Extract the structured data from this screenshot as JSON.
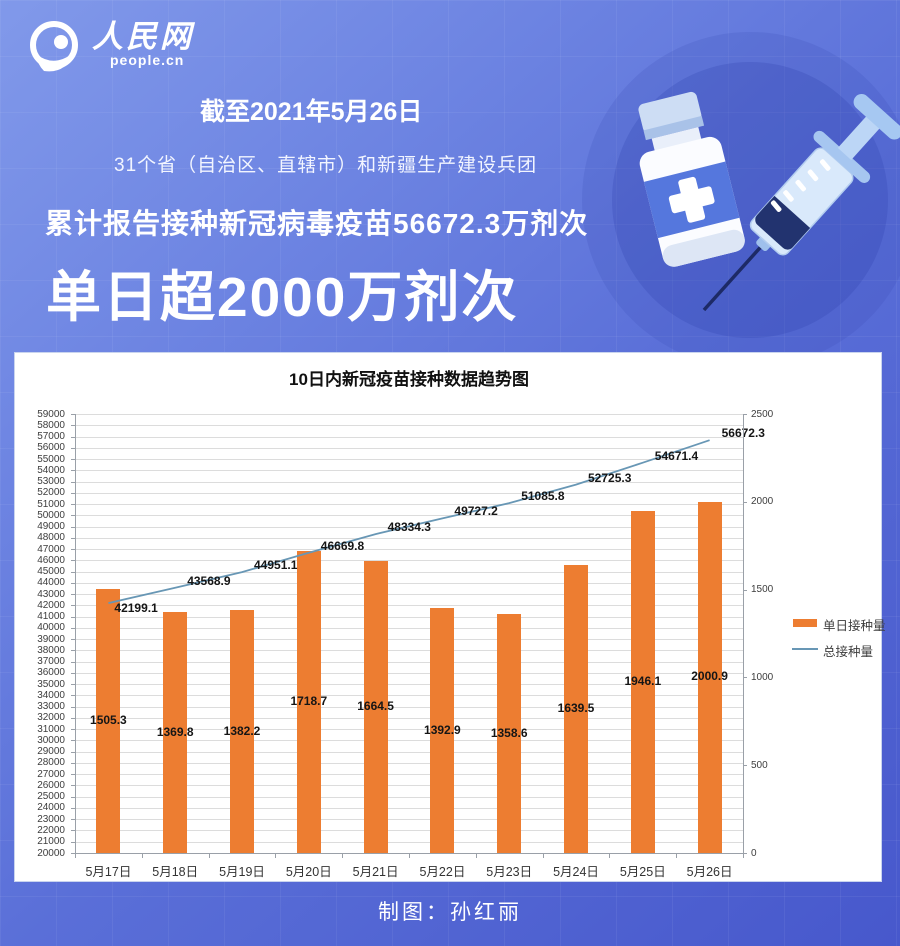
{
  "header": {
    "logo": {
      "cn": "人民网",
      "domain": "people.cn"
    },
    "date_line": "截至2021年5月26日",
    "scope_line": "31个省（自治区、直辖市）和新疆生产建设兵团",
    "cumulative_line": "累计报告接种新冠病毒疫苗56672.3万剂次",
    "headline": "单日超2000万剂次"
  },
  "chart_data": {
    "type": "bar+line",
    "title": "10日内新冠疫苗接种数据趋势图",
    "categories": [
      "5月17日",
      "5月18日",
      "5月19日",
      "5月20日",
      "5月21日",
      "5月22日",
      "5月23日",
      "5月24日",
      "5月25日",
      "5月26日"
    ],
    "series": [
      {
        "name": "单日接种量",
        "type": "bar",
        "axis": "right",
        "color": "#ed7d31",
        "values": [
          1505.3,
          1369.8,
          1382.2,
          1718.7,
          1664.5,
          1392.9,
          1358.6,
          1639.5,
          1946.1,
          2000.9
        ]
      },
      {
        "name": "总接种量",
        "type": "line",
        "axis": "left",
        "color": "#6897b5",
        "values": [
          42199.1,
          43568.9,
          44951.1,
          46669.8,
          48334.3,
          49727.2,
          51085.8,
          52725.3,
          54671.4,
          56672.3
        ]
      }
    ],
    "left_axis": {
      "min": 20000,
      "max": 59000,
      "step": 1000
    },
    "right_axis": {
      "min": 0,
      "max": 2500,
      "step": 500
    },
    "legend_position": "right",
    "grid": true,
    "data_labels": true
  },
  "footer": {
    "credit": "制图：孙红丽"
  },
  "colors": {
    "bar": "#ed7d31",
    "line": "#6897b5",
    "background_top": "#8199ea",
    "background_bottom": "#4758cc",
    "panel": "#ffffff"
  }
}
